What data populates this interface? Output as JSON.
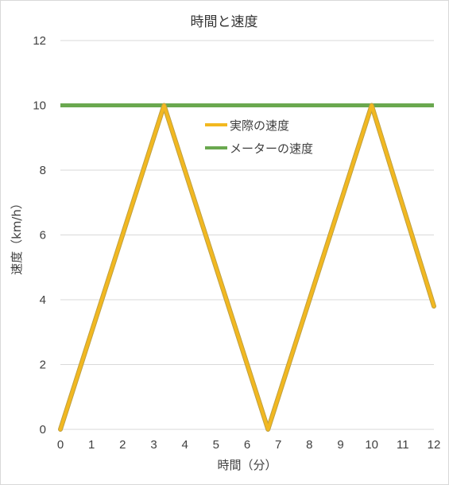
{
  "chart_data": {
    "type": "line",
    "title": "時間と速度",
    "xlabel": "時間（分）",
    "ylabel": "速度（km/h）",
    "xlim": [
      0,
      12
    ],
    "ylim": [
      0,
      12
    ],
    "x_ticks": [
      0,
      1,
      2,
      3,
      4,
      5,
      6,
      7,
      8,
      9,
      10,
      11,
      12
    ],
    "y_ticks": [
      0,
      2,
      4,
      6,
      8,
      10,
      12
    ],
    "grid": "horizontal",
    "legend_position": "inside-top-center",
    "series": [
      {
        "name": "実際の速度",
        "color": "#f2b820",
        "edge_color": "#bfa040",
        "points": [
          [
            0,
            0
          ],
          [
            3.33,
            10
          ],
          [
            6.67,
            0
          ],
          [
            10,
            10
          ],
          [
            12,
            3.8
          ]
        ]
      },
      {
        "name": "メーターの速度",
        "color": "#6aa84f",
        "points": [
          [
            0,
            10
          ],
          [
            12,
            10
          ]
        ]
      }
    ]
  }
}
